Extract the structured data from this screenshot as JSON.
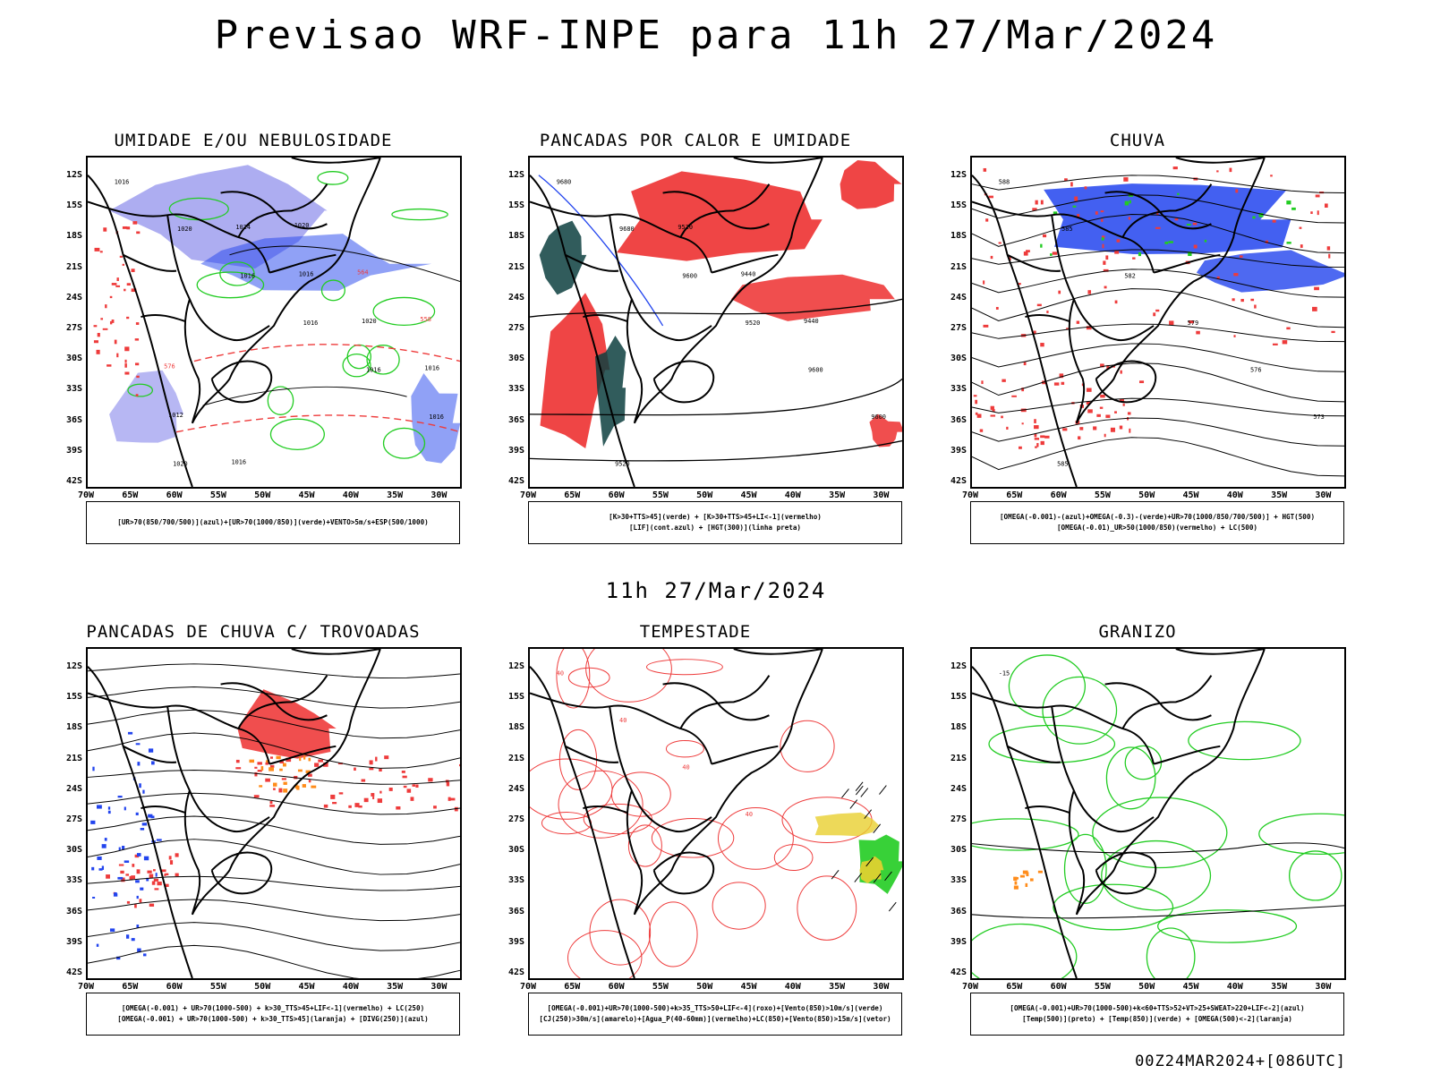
{
  "header": {
    "title": "Previsao WRF-INPE  para 11h 27/Mar/2024",
    "subtitle": "11h 27/Mar/2024",
    "footer": "00Z24MAR2024+[086UTC]"
  },
  "axes": {
    "lat_labels": [
      "12S",
      "15S",
      "18S",
      "21S",
      "24S",
      "27S",
      "30S",
      "33S",
      "36S",
      "39S",
      "42S"
    ],
    "lon_labels": [
      "70W",
      "65W",
      "60W",
      "55W",
      "50W",
      "45W",
      "40W",
      "35W",
      "30W"
    ]
  },
  "panels": [
    {
      "title": "UMIDADE E/OU NEBULOSIDADE",
      "legend": [
        "[UR>70(850/700/500)](azul)+[UR>70(1000/850)](verde)+VENTO>5m/s+ESP(500/1000)"
      ],
      "contour_labels": [
        "1016",
        "1020",
        "1016",
        "1016",
        "1016",
        "1016",
        "1020",
        "1024",
        "1016",
        "1020",
        "1016",
        "1012",
        "1016",
        "1020",
        "564",
        "558",
        "576"
      ]
    },
    {
      "title": "PANCADAS POR CALOR E UMIDADE",
      "legend": [
        "[K>30+TTS>45](verde) + [K>30+TTS>45+LI<-1](vermelho)",
        "[LIF](cont.azul) + [HGT(300)](linha preta)"
      ],
      "contour_labels": [
        "9680",
        "9680",
        "9600",
        "9520",
        "9600",
        "9600",
        "9520",
        "9520",
        "9440",
        "9440"
      ]
    },
    {
      "title": "CHUVA",
      "legend": [
        "[OMEGA(-0.001)-(azul)+OMEGA(-0.3)-(verde)+UR>70(1000/850/700/500)] + HGT(500)",
        "[OMEGA(-0.01)_UR>50(1000/850)(vermelho) + LC(500)"
      ],
      "contour_labels": [
        "588",
        "585",
        "582",
        "579",
        "576",
        "573",
        "585"
      ]
    },
    {
      "title": "PANCADAS DE CHUVA C/ TROVOADAS",
      "legend": [
        "[OMEGA(-0.001) + UR>70(1000-500) + k>30_TTS>45+LIF<-1](vermelho) + LC(250)",
        "[OMEGA(-0.001) + UR>70(1000-500) + k>30_TTS>45](laranja) + [DIVG(250)](azul)"
      ],
      "contour_labels": []
    },
    {
      "title": "TEMPESTADE",
      "legend": [
        "[OMEGA(-0.001)+UR>70(1000-500)+k>35_TTS>50+LIF<-4](roxo)+[Vento(850)>10m/s](verde)",
        "[CJ(250)>30m/s](amarelo)+[Agua_P(40-60mm)](vermelho)+LC(850)+[Vento(850)>15m/s](vetor)"
      ],
      "contour_labels": [
        "40",
        "40",
        "40",
        "40"
      ]
    },
    {
      "title": "GRANIZO",
      "legend": [
        "[OMEGA(-0.001)+UR>70(1000-500)+k<60+TTS>52+VT>25+SWEAT>220+LIF<-2](azul)",
        "[Temp(500)](preto) + [Temp(850)](verde) + [OMEGA(500)<-2](laranja)"
      ],
      "contour_labels": [
        "-15"
      ]
    }
  ],
  "colors": {
    "red": "#ee3b3b",
    "green": "#22cc22",
    "blue": "#2244ee",
    "lightblue": "#9999ee",
    "orange": "#ff8c1a",
    "yellow": "#e8d030",
    "darkgreen": "#0d4040",
    "purple": "#8844aa"
  }
}
